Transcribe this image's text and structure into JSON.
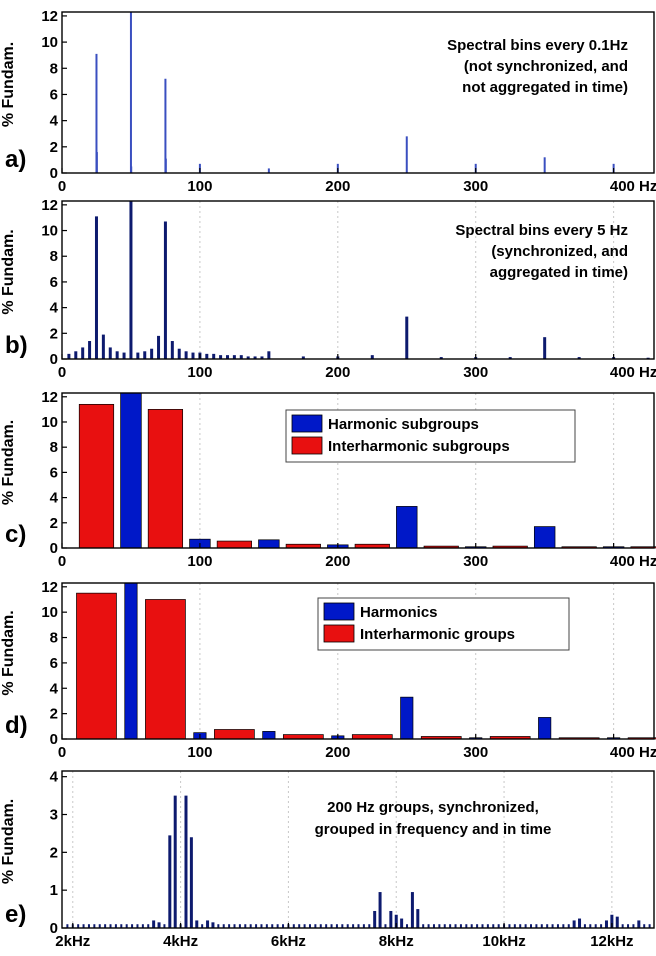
{
  "colors": {
    "thin_line": "#3a4fc0",
    "dark_line": "#0d1a6e",
    "harmonic_blue": "#0018c8",
    "interharmonic_red": "#e81010",
    "grid": "#c8c8c8"
  },
  "chart_data": [
    {
      "type": "bar",
      "panel_label": "a)",
      "ylabel": "% Fundam.",
      "xlim": [
        0,
        430
      ],
      "ylim": [
        0,
        12.3
      ],
      "xticks": [
        0,
        100,
        200,
        300,
        400
      ],
      "xtick_labels": [
        "0",
        "100",
        "200",
        "300",
        "400 Hz"
      ],
      "yticks": [
        0,
        2,
        4,
        6,
        8,
        10,
        12
      ],
      "ytick_labels": [
        "0",
        "2",
        "4",
        "6",
        "8",
        "10",
        "12"
      ],
      "grid": false,
      "annotation": [
        "Spectral bins every 0.1Hz",
        "(not synchronized, and",
        "not aggregated in time)"
      ],
      "series": [
        {
          "style": "thin",
          "x": [
            25,
            25.3,
            50,
            50.2,
            75,
            75.3,
            100,
            150,
            200,
            250,
            300,
            350,
            400
          ],
          "values": [
            9.1,
            1.6,
            12.3,
            0.5,
            7.2,
            1.1,
            0.7,
            0.35,
            0.7,
            2.8,
            0.7,
            1.2,
            0.7
          ]
        }
      ]
    },
    {
      "type": "bar",
      "panel_label": "b)",
      "ylabel": "% Fundam.",
      "xlim": [
        0,
        430
      ],
      "ylim": [
        0,
        12.3
      ],
      "xticks": [
        0,
        100,
        200,
        300,
        400
      ],
      "xtick_labels": [
        "0",
        "100",
        "200",
        "300",
        "400 Hz"
      ],
      "yticks": [
        0,
        2,
        4,
        6,
        8,
        10,
        12
      ],
      "ytick_labels": [
        "0",
        "2",
        "4",
        "6",
        "8",
        "10",
        "12"
      ],
      "grid": true,
      "annotation": [
        "Spectral bins every 5 Hz",
        "(synchronized, and",
        "aggregated in time)"
      ],
      "series": [
        {
          "style": "dark",
          "x": [
            5,
            10,
            15,
            20,
            25,
            30,
            35,
            40,
            45,
            50,
            55,
            60,
            65,
            70,
            75,
            80,
            85,
            90,
            95,
            100,
            105,
            110,
            115,
            120,
            125,
            130,
            135,
            140,
            145,
            150,
            175,
            200,
            225,
            250,
            275,
            300,
            325,
            350,
            375,
            400,
            425
          ],
          "values": [
            0.4,
            0.6,
            0.9,
            1.4,
            11.1,
            1.9,
            0.9,
            0.6,
            0.5,
            12.3,
            0.5,
            0.6,
            0.8,
            1.8,
            10.7,
            1.4,
            0.8,
            0.6,
            0.5,
            0.5,
            0.4,
            0.4,
            0.3,
            0.3,
            0.3,
            0.3,
            0.2,
            0.2,
            0.2,
            0.6,
            0.2,
            0.2,
            0.3,
            3.3,
            0.15,
            0.15,
            0.15,
            1.7,
            0.15,
            0.15,
            0.1
          ]
        }
      ]
    },
    {
      "type": "bar",
      "panel_label": "c)",
      "ylabel": "% Fundam.",
      "xlim": [
        0,
        430
      ],
      "ylim": [
        0,
        12.3
      ],
      "xticks": [
        0,
        100,
        200,
        300,
        400
      ],
      "xtick_labels": [
        "0",
        "100",
        "200",
        "300",
        "400 Hz"
      ],
      "yticks": [
        0,
        2,
        4,
        6,
        8,
        10,
        12
      ],
      "ytick_labels": [
        "0",
        "2",
        "4",
        "6",
        "8",
        "10",
        "12"
      ],
      "grid": true,
      "legend": {
        "placement": "top-right",
        "entries": [
          {
            "name": "Harmonic subgroups",
            "color": "#0018c8"
          },
          {
            "name": "Interharmonic subgroups",
            "color": "#e81010"
          }
        ]
      },
      "series": [
        {
          "name": "Harmonic subgroups",
          "color": "#0018c8",
          "x": [
            50,
            100,
            150,
            200,
            250,
            300,
            350,
            400
          ],
          "values": [
            12.3,
            0.7,
            0.65,
            0.25,
            3.3,
            0.1,
            1.7,
            0.1
          ],
          "bar_width": 15
        },
        {
          "name": "Interharmonic subgroups",
          "color": "#e81010",
          "x": [
            25,
            75,
            125,
            175,
            225,
            275,
            325,
            375,
            425
          ],
          "values": [
            11.4,
            11.0,
            0.55,
            0.3,
            0.3,
            0.15,
            0.15,
            0.1,
            0.1
          ],
          "bar_width": 25
        }
      ]
    },
    {
      "type": "bar",
      "panel_label": "d)",
      "ylabel": "% Fundam.",
      "xlim": [
        0,
        430
      ],
      "ylim": [
        0,
        12.3
      ],
      "xticks": [
        0,
        100,
        200,
        300,
        400
      ],
      "xtick_labels": [
        "0",
        "100",
        "200",
        "300",
        "400 Hz"
      ],
      "yticks": [
        0,
        2,
        4,
        6,
        8,
        10,
        12
      ],
      "ytick_labels": [
        "0",
        "2",
        "4",
        "6",
        "8",
        "10",
        "12"
      ],
      "grid": true,
      "legend": {
        "placement": "top-right",
        "entries": [
          {
            "name": "Harmonics",
            "color": "#0018c8"
          },
          {
            "name": "Interharmonic groups",
            "color": "#e81010"
          }
        ]
      },
      "series": [
        {
          "name": "Harmonics",
          "color": "#0018c8",
          "x": [
            50,
            100,
            150,
            200,
            250,
            300,
            350,
            400
          ],
          "values": [
            12.3,
            0.5,
            0.6,
            0.25,
            3.3,
            0.1,
            1.7,
            0.1
          ],
          "bar_width": 9
        },
        {
          "name": "Interharmonic groups",
          "color": "#e81010",
          "x": [
            25,
            75,
            125,
            175,
            225,
            275,
            325,
            375,
            425
          ],
          "values": [
            11.5,
            11.0,
            0.75,
            0.35,
            0.35,
            0.2,
            0.2,
            0.1,
            0.1
          ],
          "bar_width": 29
        }
      ]
    },
    {
      "type": "bar",
      "panel_label": "e)",
      "ylabel": "% Fundam.",
      "xlim": [
        1800,
        12800
      ],
      "ylim": [
        0,
        4.15
      ],
      "xticks": [
        2000,
        4000,
        6000,
        8000,
        10000,
        12000
      ],
      "xtick_labels": [
        "2kHz",
        "4kHz",
        "6kHz",
        "8kHz",
        "10kHz",
        "12kHz"
      ],
      "yticks": [
        0,
        1,
        2,
        3,
        4
      ],
      "ytick_labels": [
        "0",
        "1",
        "2",
        "3",
        "4"
      ],
      "grid": true,
      "annotation": [
        "200 Hz groups, synchronized,",
        "grouped in frequency and in time"
      ],
      "series": [
        {
          "style": "dark",
          "x": [
            3500,
            3600,
            3800,
            3900,
            4100,
            4200,
            4300,
            4500,
            4600,
            7600,
            7700,
            7900,
            8000,
            8100,
            8300,
            8400,
            11300,
            11400,
            11900,
            12000,
            12100,
            12500
          ],
          "values": [
            0.2,
            0.15,
            2.45,
            3.5,
            3.5,
            2.4,
            0.2,
            0.2,
            0.15,
            0.45,
            0.95,
            0.45,
            0.35,
            0.25,
            0.95,
            0.5,
            0.2,
            0.25,
            0.2,
            0.35,
            0.3,
            0.2
          ],
          "baseline_step": 100,
          "baseline_value": 0.1
        }
      ]
    }
  ]
}
